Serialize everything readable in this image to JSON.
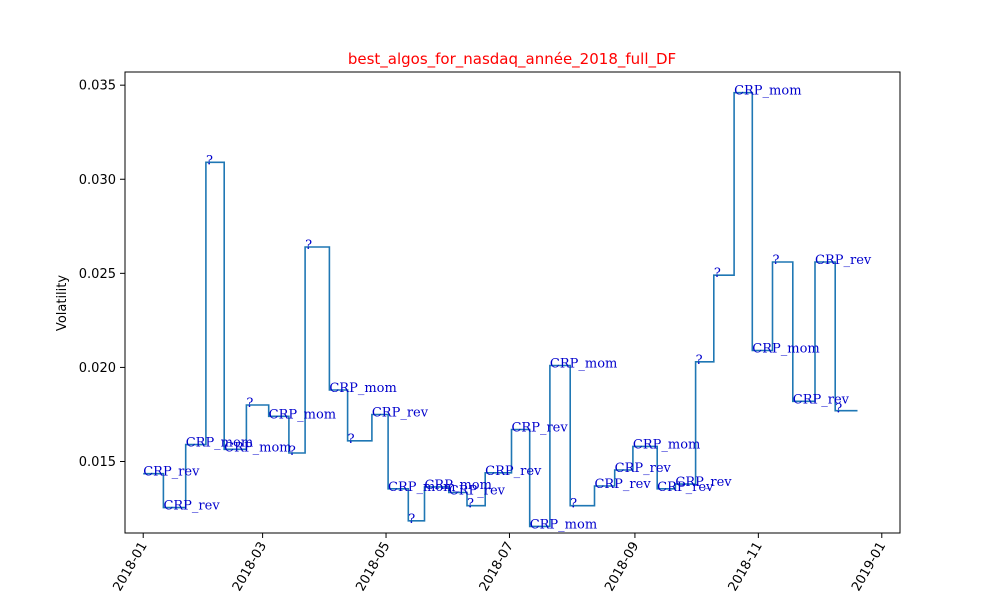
{
  "chart_data": {
    "type": "line",
    "title": "best_algos_for_nasdaq_année_2018_full_DF",
    "xlabel": "",
    "ylabel": "Volatility",
    "xlim": [
      "2017-12-23",
      "2019-01-10"
    ],
    "ylim": [
      0.0112,
      0.0357
    ],
    "x_ticks": [
      "2018-01",
      "2018-03",
      "2018-05",
      "2018-07",
      "2018-09",
      "2018-11",
      "2019-01"
    ],
    "y_ticks": [
      0.015,
      0.02,
      0.025,
      0.03,
      0.035
    ],
    "y_tick_labels": [
      "0.015",
      "0.020",
      "0.025",
      "0.030",
      "0.035"
    ],
    "grid": false,
    "colors": {
      "line": "#1f77b4",
      "title": "#ff0000",
      "annotation": "#0000cc"
    },
    "series": [
      {
        "values": [
          {
            "start": "2018-01-01",
            "end": "2018-01-11",
            "y": 0.01435,
            "label": "CRP_rev"
          },
          {
            "start": "2018-01-11",
            "end": "2018-01-22",
            "y": 0.01255,
            "label": "CRP_rev"
          },
          {
            "start": "2018-01-22",
            "end": "2018-02-01",
            "y": 0.0159,
            "label": "CRP_mom"
          },
          {
            "start": "2018-02-01",
            "end": "2018-02-10",
            "y": 0.0309,
            "label": "?"
          },
          {
            "start": "2018-02-10",
            "end": "2018-02-21",
            "y": 0.01565,
            "label": "CRP_mom"
          },
          {
            "start": "2018-02-21",
            "end": "2018-03-04",
            "y": 0.018,
            "label": "?"
          },
          {
            "start": "2018-03-04",
            "end": "2018-03-14",
            "y": 0.0174,
            "label": "CRP_mom"
          },
          {
            "start": "2018-03-14",
            "end": "2018-03-22",
            "y": 0.01545,
            "label": "?"
          },
          {
            "start": "2018-03-22",
            "end": "2018-04-03",
            "y": 0.0264,
            "label": "?"
          },
          {
            "start": "2018-04-03",
            "end": "2018-04-12",
            "y": 0.0188,
            "label": "CRP_mom"
          },
          {
            "start": "2018-04-12",
            "end": "2018-04-24",
            "y": 0.0161,
            "label": "?"
          },
          {
            "start": "2018-04-24",
            "end": "2018-05-02",
            "y": 0.0175,
            "label": "CRP_rev"
          },
          {
            "start": "2018-05-02",
            "end": "2018-05-12",
            "y": 0.01355,
            "label": "CRP_mom"
          },
          {
            "start": "2018-05-12",
            "end": "2018-05-20",
            "y": 0.01185,
            "label": "?"
          },
          {
            "start": "2018-05-20",
            "end": "2018-06-01",
            "y": 0.01365,
            "label": "CRP_mom"
          },
          {
            "start": "2018-06-01",
            "end": "2018-06-10",
            "y": 0.01335,
            "label": "CRP_rev"
          },
          {
            "start": "2018-06-10",
            "end": "2018-06-19",
            "y": 0.01265,
            "label": "?"
          },
          {
            "start": "2018-06-19",
            "end": "2018-07-02",
            "y": 0.0144,
            "label": "CRP_rev"
          },
          {
            "start": "2018-07-02",
            "end": "2018-07-11",
            "y": 0.0167,
            "label": "CRP_rev"
          },
          {
            "start": "2018-07-11",
            "end": "2018-07-21",
            "y": 0.01155,
            "label": "CRP_mom"
          },
          {
            "start": "2018-07-21",
            "end": "2018-07-31",
            "y": 0.0201,
            "label": "CRP_mom"
          },
          {
            "start": "2018-07-31",
            "end": "2018-08-12",
            "y": 0.01265,
            "label": "?"
          },
          {
            "start": "2018-08-12",
            "end": "2018-08-22",
            "y": 0.0137,
            "label": "CRP_rev"
          },
          {
            "start": "2018-08-22",
            "end": "2018-08-31",
            "y": 0.01455,
            "label": "CRP_rev"
          },
          {
            "start": "2018-08-31",
            "end": "2018-09-12",
            "y": 0.0158,
            "label": "CRP_mom"
          },
          {
            "start": "2018-09-12",
            "end": "2018-09-21",
            "y": 0.01355,
            "label": "CRP_rev"
          },
          {
            "start": "2018-09-21",
            "end": "2018-10-01",
            "y": 0.0138,
            "label": "CRP_rev"
          },
          {
            "start": "2018-10-01",
            "end": "2018-10-10",
            "y": 0.0203,
            "label": "?"
          },
          {
            "start": "2018-10-10",
            "end": "2018-10-20",
            "y": 0.0249,
            "label": "?"
          },
          {
            "start": "2018-10-20",
            "end": "2018-10-29",
            "y": 0.0346,
            "label": "CRP_mom"
          },
          {
            "start": "2018-10-29",
            "end": "2018-11-08",
            "y": 0.0209,
            "label": "CRP_mom"
          },
          {
            "start": "2018-11-08",
            "end": "2018-11-18",
            "y": 0.0256,
            "label": "?"
          },
          {
            "start": "2018-11-18",
            "end": "2018-11-29",
            "y": 0.0182,
            "label": "CRP_rev"
          },
          {
            "start": "2018-11-29",
            "end": "2018-12-09",
            "y": 0.0256,
            "label": "CRP_rev"
          },
          {
            "start": "2018-12-09",
            "end": "2018-12-20",
            "y": 0.0177,
            "label": "?"
          }
        ]
      }
    ]
  }
}
